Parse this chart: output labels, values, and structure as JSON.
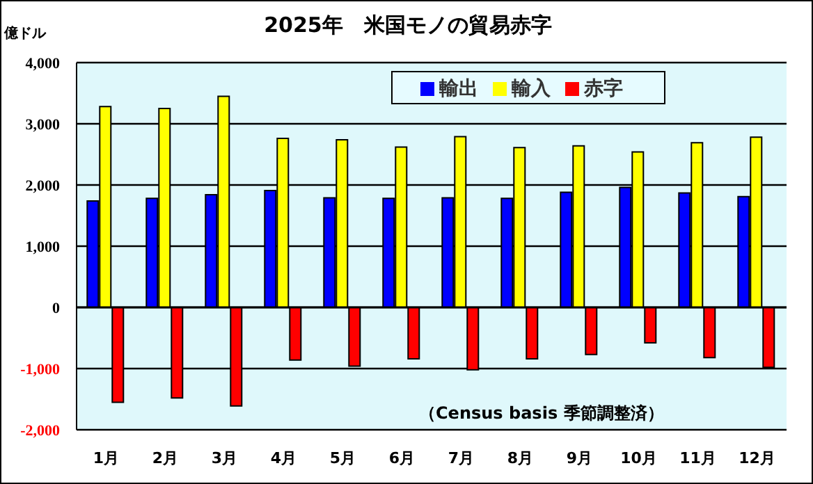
{
  "chart_data": {
    "type": "bar",
    "title": "2025年　米国モノの貿易赤字",
    "categories": [
      "1月",
      "2月",
      "3月",
      "4月",
      "5月",
      "6月",
      "7月",
      "8月",
      "9月",
      "10月",
      "11月",
      "12月"
    ],
    "series": [
      {
        "name": "輸出",
        "color": "#0000ff",
        "values": [
          1740,
          1780,
          1840,
          1910,
          1790,
          1780,
          1790,
          1780,
          1880,
          1960,
          1870,
          1810
        ]
      },
      {
        "name": "輸入",
        "color": "#ffff00",
        "values": [
          3280,
          3250,
          3450,
          2760,
          2740,
          2620,
          2790,
          2610,
          2640,
          2540,
          2690,
          2780
        ]
      },
      {
        "name": "赤字",
        "color": "#ff0000",
        "values": [
          -1550,
          -1480,
          -1610,
          -860,
          -960,
          -840,
          -1020,
          -840,
          -770,
          -580,
          -820,
          -980
        ]
      }
    ],
    "ylim": [
      -2000,
      4000
    ],
    "yticks": [
      {
        "value": -2000,
        "label": "-2,000"
      },
      {
        "value": -1000,
        "label": "-1,000"
      },
      0,
      {
        "value": 1000,
        "label": "1,000"
      },
      {
        "value": 2000,
        "label": "2,000"
      },
      {
        "value": 3000,
        "label": "3,000"
      },
      {
        "value": 4000,
        "label": "4,000"
      }
    ],
    "grid": "y",
    "legend": "top right",
    "annotations": [
      "億ドル",
      "（Census basis 季節調整済）"
    ]
  }
}
